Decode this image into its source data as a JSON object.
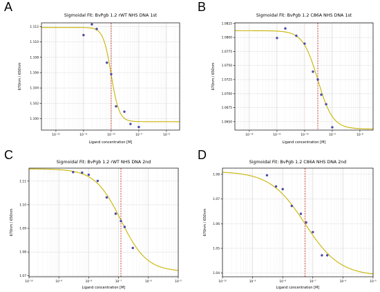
{
  "colors": {
    "curve": "#c8b400",
    "point": "#4a4aa8",
    "vline": "#c0392b",
    "grid": "#dddddd",
    "axis": "#000000"
  },
  "chart_data": [
    {
      "panel_label": "A",
      "type": "scatter",
      "title": "Sigmoidal Fit: BvPgb 1.2 rWT NHS DNA 1st",
      "xlabel": "Ligand concentration [M]",
      "ylabel": "670nm / 650nm",
      "x_scale": "log",
      "xlim": [
        3e-13,
        3e-08
      ],
      "ylim": [
        1.0985,
        1.1125
      ],
      "x_ticks": [
        1e-12,
        1e-11,
        1e-10,
        1e-09,
        1e-08
      ],
      "x_tick_labels": [
        "10⁻¹²",
        "10⁻¹¹",
        "10⁻¹⁰",
        "10⁻⁹",
        "10⁻⁸"
      ],
      "y_ticks": [
        1.1,
        1.102,
        1.104,
        1.106,
        1.108,
        1.11,
        1.112
      ],
      "y_tick_labels": [
        "1.100",
        "1.102",
        "1.104",
        "1.106",
        "1.108",
        "1.110",
        "1.112"
      ],
      "fit": {
        "top": 1.1119,
        "bottom": 1.0996,
        "ec50": 1e-10,
        "hill": 3.0
      },
      "vline_x": 1e-10,
      "points": [
        {
          "x": 1e-11,
          "y": 1.1109
        },
        {
          "x": 2e-11,
          "y": 1.1123
        },
        {
          "x": 3e-11,
          "y": 1.1117
        },
        {
          "x": 7e-11,
          "y": 1.1073
        },
        {
          "x": 1e-10,
          "y": 1.1058
        },
        {
          "x": 1.5e-10,
          "y": 1.1016
        },
        {
          "x": 3e-10,
          "y": 1.1009
        },
        {
          "x": 5e-10,
          "y": 1.0993
        },
        {
          "x": 1e-09,
          "y": 1.0989
        }
      ],
      "grid": true
    },
    {
      "panel_label": "B",
      "type": "scatter",
      "title": "Sigmoidal Fit: BvPgb 1.2 C86A NHS DNA 1st",
      "xlabel": "Ligand concentration [M]",
      "ylabel": "670nm / 650nm",
      "x_scale": "log",
      "xlim": [
        3e-13,
        3e-08
      ],
      "ylim": [
        1.0635,
        1.0826
      ],
      "x_ticks": [
        1e-12,
        1e-11,
        1e-10,
        1e-09,
        1e-08
      ],
      "x_tick_labels": [
        "10⁻¹²",
        "10⁻¹¹",
        "10⁻¹⁰",
        "10⁻⁹",
        "10⁻⁸"
      ],
      "y_ticks": [
        1.065,
        1.0675,
        1.07,
        1.0725,
        1.075,
        1.0775,
        1.08,
        1.0825
      ],
      "y_tick_labels": [
        "1.0650",
        "1.0675",
        "1.0700",
        "1.0725",
        "1.0750",
        "1.0775",
        "1.0800",
        "1.0825"
      ],
      "fit": {
        "top": 1.0812,
        "bottom": 1.0637,
        "ec50": 3e-10,
        "hill": 1.6
      },
      "vline_x": 3e-10,
      "points": [
        {
          "x": 1e-11,
          "y": 1.0799
        },
        {
          "x": 2e-11,
          "y": 1.0816
        },
        {
          "x": 5e-11,
          "y": 1.0803
        },
        {
          "x": 1e-10,
          "y": 1.0789
        },
        {
          "x": 2e-10,
          "y": 1.0739
        },
        {
          "x": 3e-10,
          "y": 1.0725
        },
        {
          "x": 4e-10,
          "y": 1.0698
        },
        {
          "x": 6e-10,
          "y": 1.0681
        },
        {
          "x": 1e-09,
          "y": 1.064
        }
      ],
      "grid": true
    },
    {
      "panel_label": "C",
      "type": "scatter",
      "title": "Sigmoidal Fit: BvPgb 1.2 rWT NHS DNA 2nd",
      "xlabel": "Ligand concentration [M]",
      "ylabel": "670nm / 650nm",
      "x_scale": "log",
      "xlim": [
        1e-10,
        1e-05
      ],
      "ylim": [
        1.0695,
        1.1155
      ],
      "x_ticks": [
        1e-10,
        1e-09,
        1e-08,
        1e-07,
        1e-06,
        1e-05
      ],
      "x_tick_labels": [
        "10⁻¹⁰",
        "10⁻⁹",
        "10⁻⁸",
        "10⁻⁷",
        "10⁻⁶",
        "10⁻⁵"
      ],
      "y_ticks": [
        1.07,
        1.08,
        1.09,
        1.1,
        1.11
      ],
      "y_tick_labels": [
        "1.07",
        "1.08",
        "1.09",
        "1.10",
        "1.11"
      ],
      "fit": {
        "top": 1.1152,
        "bottom": 1.0717,
        "ec50": 1.2e-07,
        "hill": 1.0
      },
      "vline_x": 1.2e-07,
      "points": [
        {
          "x": 3e-09,
          "y": 1.1138
        },
        {
          "x": 6e-09,
          "y": 1.1136
        },
        {
          "x": 1e-08,
          "y": 1.1127
        },
        {
          "x": 2e-08,
          "y": 1.1101
        },
        {
          "x": 4e-08,
          "y": 1.1031
        },
        {
          "x": 8e-08,
          "y": 1.0962
        },
        {
          "x": 1.2e-07,
          "y": 1.0931
        },
        {
          "x": 1.6e-07,
          "y": 1.0906
        },
        {
          "x": 3e-07,
          "y": 1.0817
        }
      ],
      "grid": true
    },
    {
      "panel_label": "D",
      "type": "scatter",
      "title": "Sigmoidal Fit: BvPgb 1.2 C86A NHS DNA 2nd",
      "xlabel": "Ligand concentration [M]",
      "ylabel": "670nm / 650nm",
      "x_scale": "log",
      "xlim": [
        1e-10,
        1e-05
      ],
      "ylim": [
        1.0385,
        1.0825
      ],
      "x_ticks": [
        1e-10,
        1e-09,
        1e-08,
        1e-07,
        1e-06,
        1e-05
      ],
      "x_tick_labels": [
        "10⁻¹⁰",
        "10⁻⁹",
        "10⁻⁸",
        "10⁻⁷",
        "10⁻⁶",
        "10⁻⁵"
      ],
      "y_ticks": [
        1.04,
        1.05,
        1.06,
        1.07,
        1.08
      ],
      "y_tick_labels": [
        "1.04",
        "1.05",
        "1.06",
        "1.07",
        "1.08"
      ],
      "fit": {
        "top": 1.0812,
        "bottom": 1.0388,
        "ec50": 5.5e-08,
        "hill": 0.75
      },
      "vline_x": 5.5e-08,
      "points": [
        {
          "x": 3e-09,
          "y": 1.0796
        },
        {
          "x": 6e-09,
          "y": 1.0751
        },
        {
          "x": 1e-08,
          "y": 1.074
        },
        {
          "x": 2e-08,
          "y": 1.0672
        },
        {
          "x": 4e-08,
          "y": 1.064
        },
        {
          "x": 6e-08,
          "y": 1.0605
        },
        {
          "x": 1e-07,
          "y": 1.0566
        },
        {
          "x": 2e-07,
          "y": 1.0472
        },
        {
          "x": 3e-07,
          "y": 1.0472
        }
      ],
      "grid": true
    }
  ]
}
